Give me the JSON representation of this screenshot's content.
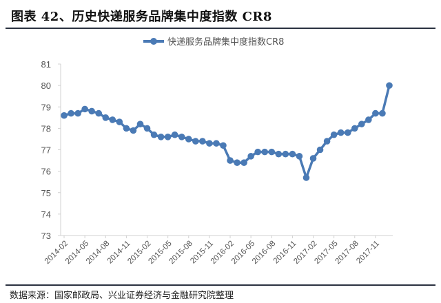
{
  "header": {
    "title": "图表 42、历史快递服务品牌集中度指数 CR8"
  },
  "footer": {
    "source": "数据来源：国家邮政局、兴业证券经济与金融研究院整理"
  },
  "colors": {
    "series": "#4a7ab5",
    "axis": "#d0d0d0",
    "rule": "#2a3140"
  },
  "chart_data": {
    "type": "line",
    "title": "图表 42、历史快递服务品牌集中度指数 CR8",
    "xlabel": "",
    "ylabel": "",
    "ylim": [
      73,
      81
    ],
    "yticks": [
      73,
      74,
      75,
      76,
      77,
      78,
      79,
      80,
      81
    ],
    "grid": false,
    "legend_position": "top",
    "xtick_labels": [
      "2014-02",
      "2014-05",
      "2014-08",
      "2014-11",
      "2015-02",
      "2015-05",
      "2015-08",
      "2015-11",
      "2016-02",
      "2016-05",
      "2016-08",
      "2016-11",
      "2017-02",
      "2017-05",
      "2017-08",
      "2017-11"
    ],
    "x": [
      "2014-02",
      "2014-03",
      "2014-04",
      "2014-05",
      "2014-06",
      "2014-07",
      "2014-08",
      "2014-09",
      "2014-10",
      "2014-11",
      "2014-12",
      "2015-01",
      "2015-02",
      "2015-03",
      "2015-04",
      "2015-05",
      "2015-06",
      "2015-07",
      "2015-08",
      "2015-09",
      "2015-10",
      "2015-11",
      "2015-12",
      "2016-01",
      "2016-02",
      "2016-03",
      "2016-04",
      "2016-05",
      "2016-06",
      "2016-07",
      "2016-08",
      "2016-09",
      "2016-10",
      "2016-11",
      "2016-12",
      "2017-01",
      "2017-02",
      "2017-03",
      "2017-04",
      "2017-05",
      "2017-06",
      "2017-07",
      "2017-08",
      "2017-09",
      "2017-10",
      "2017-11",
      "2017-12",
      "2018-01"
    ],
    "series": [
      {
        "name": "快递服务品牌集中度指数CR8",
        "values": [
          78.6,
          78.7,
          78.7,
          78.9,
          78.8,
          78.7,
          78.5,
          78.4,
          78.3,
          78.0,
          77.9,
          78.2,
          78.0,
          77.7,
          77.6,
          77.6,
          77.7,
          77.6,
          77.5,
          77.4,
          77.4,
          77.3,
          77.3,
          77.2,
          76.5,
          76.4,
          76.4,
          76.7,
          76.9,
          76.9,
          76.9,
          76.8,
          76.8,
          76.8,
          76.7,
          75.7,
          76.6,
          77.0,
          77.4,
          77.7,
          77.8,
          77.8,
          78.0,
          78.2,
          78.4,
          78.7,
          78.7,
          80.0
        ]
      }
    ]
  }
}
